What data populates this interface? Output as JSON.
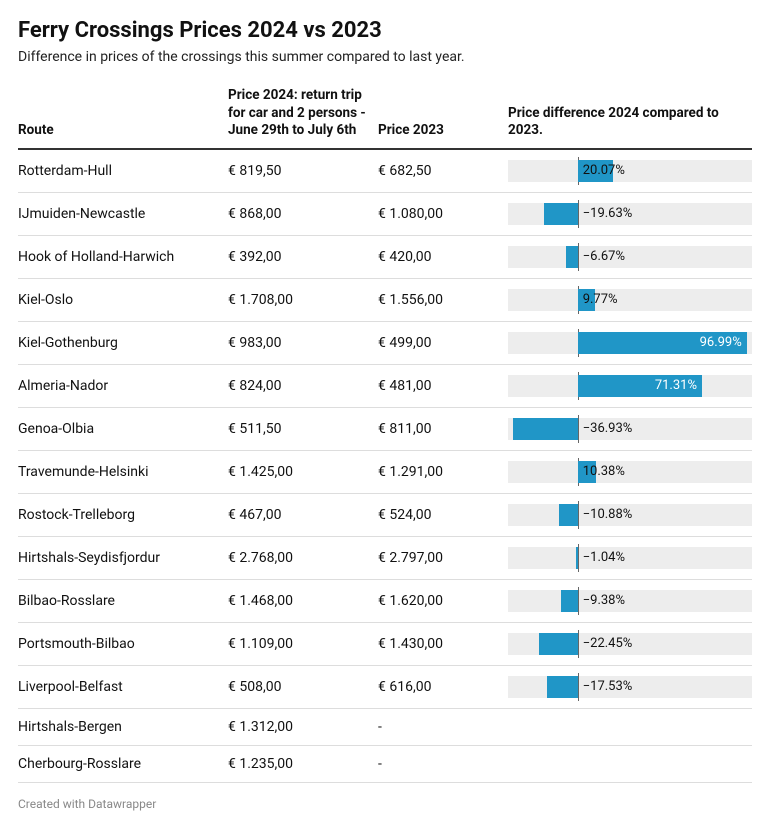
{
  "header": {
    "title": "Ferry Crossings Prices 2024 vs 2023",
    "subtitle": "Difference in prices of the crossings this summer compared to last year."
  },
  "table": {
    "columns": {
      "route": "Route",
      "price2024": "Price 2024: return trip for car and 2 persons - June 29th to July 6th",
      "price2023": "Price 2023",
      "diff": "Price difference 2024 compared to 2023."
    },
    "rows": [
      {
        "route": "Rotterdam-Hull",
        "p24": "€ 819,50",
        "p23": "€ 682,50",
        "diff": 20.07,
        "diff_label": "20.07%"
      },
      {
        "route": "IJmuiden-Newcastle",
        "p24": "€ 868,00",
        "p23": "€ 1.080,00",
        "diff": -19.63,
        "diff_label": "−19.63%"
      },
      {
        "route": "Hook of Holland-Harwich",
        "p24": "€ 392,00",
        "p23": "€ 420,00",
        "diff": -6.67,
        "diff_label": "−6.67%"
      },
      {
        "route": "Kiel-Oslo",
        "p24": "€ 1.708,00",
        "p23": "€ 1.556,00",
        "diff": 9.77,
        "diff_label": "9.77%"
      },
      {
        "route": "Kiel-Gothenburg",
        "p24": "€ 983,00",
        "p23": "€ 499,00",
        "diff": 96.99,
        "diff_label": "96.99%",
        "label_inside": true
      },
      {
        "route": "Almeria-Nador",
        "p24": "€ 824,00",
        "p23": "€ 481,00",
        "diff": 71.31,
        "diff_label": "71.31%",
        "label_inside": true
      },
      {
        "route": "Genoa-Olbia",
        "p24": "€ 511,50",
        "p23": "€ 811,00",
        "diff": -36.93,
        "diff_label": "−36.93%"
      },
      {
        "route": "Travemunde-Helsinki",
        "p24": "€ 1.425,00",
        "p23": "€ 1.291,00",
        "diff": 10.38,
        "diff_label": "10.38%"
      },
      {
        "route": "Rostock-Trelleborg",
        "p24": "€ 467,00",
        "p23": "€ 524,00",
        "diff": -10.88,
        "diff_label": "−10.88%"
      },
      {
        "route": "Hirtshals-Seydisfjordur",
        "p24": "€ 2.768,00",
        "p23": "€ 2.797,00",
        "diff": -1.04,
        "diff_label": "−1.04%"
      },
      {
        "route": "Bilbao-Rosslare",
        "p24": "€ 1.468,00",
        "p23": "€ 1.620,00",
        "diff": -9.38,
        "diff_label": "−9.38%"
      },
      {
        "route": "Portsmouth-Bilbao",
        "p24": "€ 1.109,00",
        "p23": "€ 1.430,00",
        "diff": -22.45,
        "diff_label": "−22.45%"
      },
      {
        "route": "Liverpool-Belfast",
        "p24": "€ 508,00",
        "p23": "€ 616,00",
        "diff": -17.53,
        "diff_label": "−17.53%"
      },
      {
        "route": "Hirtshals-Bergen",
        "p24": "€ 1.312,00",
        "p23": "-",
        "diff": null,
        "diff_label": ""
      },
      {
        "route": "Cherbourg-Rosslare",
        "p24": "€ 1.235,00",
        "p23": "-",
        "diff": null,
        "diff_label": ""
      }
    ]
  },
  "diff_chart": {
    "type": "diverging-bar",
    "domain_min": -40,
    "domain_max": 100,
    "zero_line_color": "#666666",
    "track_color": "#ededed",
    "bar_color": "#2096c7",
    "label_inside_color": "#ffffff",
    "label_outside_color": "#111111",
    "label_fontsize": 13
  },
  "styling": {
    "background_color": "#ffffff",
    "title_fontsize": 22,
    "title_weight": 700,
    "subtitle_fontsize": 14,
    "subtitle_color": "#222222",
    "header_border_color": "#333333",
    "row_border_color": "#dddddd",
    "cell_fontsize": 14,
    "header_fontsize": 13.5,
    "credit_color": "#888888",
    "credit_fontsize": 12
  },
  "footer": {
    "credit": "Created with Datawrapper"
  }
}
